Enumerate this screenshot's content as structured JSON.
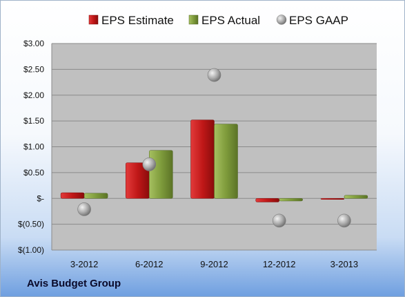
{
  "legend": [
    "EPS Estimate",
    "EPS Actual",
    "EPS GAAP"
  ],
  "company_label": "Avis Budget Group",
  "colors": {
    "estimate": "#c01818",
    "actual": "#7f9c3c",
    "gaap": "#a8a8a8",
    "plot_bg": "#c0c0c0"
  },
  "chart_data": {
    "type": "bar",
    "categories": [
      "3-2012",
      "6-2012",
      "9-2012",
      "12-2012",
      "3-2013"
    ],
    "series": [
      {
        "name": "EPS Estimate",
        "type": "bar",
        "values": [
          0.11,
          0.69,
          1.52,
          -0.07,
          -0.01
        ]
      },
      {
        "name": "EPS Actual",
        "type": "bar",
        "values": [
          0.1,
          0.93,
          1.44,
          -0.05,
          0.06
        ]
      },
      {
        "name": "EPS GAAP",
        "type": "scatter",
        "values": [
          -0.21,
          0.66,
          2.39,
          -0.43,
          -0.43
        ]
      }
    ],
    "ylim": [
      -1.0,
      3.0
    ],
    "yticks": [
      3.0,
      2.5,
      2.0,
      1.5,
      1.0,
      0.5,
      0,
      -0.5,
      -1.0
    ],
    "ytick_labels": [
      "$3.00",
      "$2.50",
      "$2.00",
      "$1.50",
      "$1.00",
      "$0.50",
      "$-",
      "$(0.50)",
      "$(1.00)"
    ],
    "grid": true,
    "legend_position": "top"
  }
}
